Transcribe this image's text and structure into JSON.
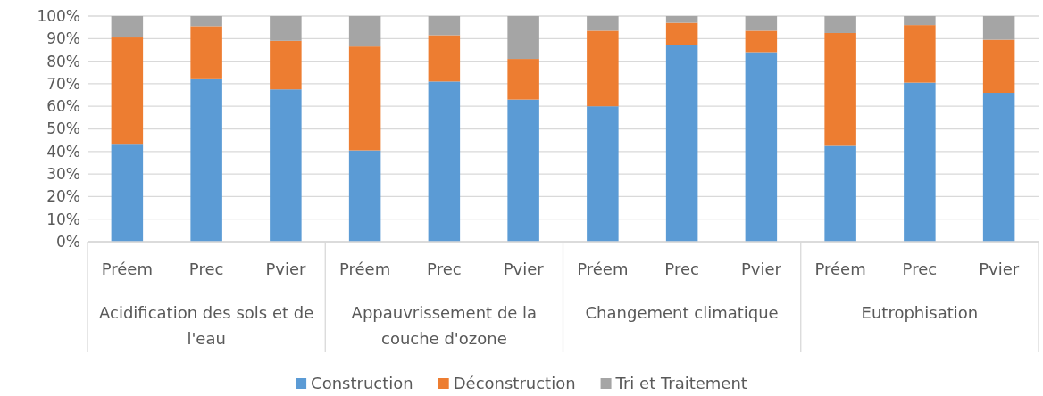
{
  "chart_data": {
    "type": "bar",
    "stacked": true,
    "categories": [
      "Préem",
      "Prec",
      "Pvier",
      "Préem",
      "Prec",
      "Pvier",
      "Préem",
      "Prec",
      "Pvier",
      "Préem",
      "Prec",
      "Pvier"
    ],
    "annotations": [
      "Acidification des sols et de l'eau",
      "Appauvrissement de la couche d'ozone",
      "Changement climatique",
      "Eutrophisation"
    ],
    "series": [
      {
        "name": "Construction",
        "color": "#5b9bd5",
        "values": [
          43,
          72,
          67.5,
          40.5,
          71,
          63,
          60,
          87,
          84,
          42.5,
          70.5,
          66
        ]
      },
      {
        "name": "Déconstruction",
        "color": "#ed7d31",
        "values": [
          47.5,
          23.5,
          21.5,
          46,
          20.5,
          18,
          33.5,
          10,
          9.5,
          50,
          25.5,
          23.5
        ]
      },
      {
        "name": "Tri et Traitement",
        "color": "#a5a5a5",
        "values": [
          9.5,
          4.5,
          11,
          13.5,
          8.5,
          19,
          6.5,
          3,
          6.5,
          7.5,
          4,
          10.5
        ]
      }
    ],
    "ylim": [
      0,
      100
    ],
    "yticks": [
      {
        "value": 0,
        "label": "0%"
      },
      {
        "value": 10,
        "label": "10%"
      },
      {
        "value": 20,
        "label": "20%"
      },
      {
        "value": 30,
        "label": "30%"
      },
      {
        "value": 40,
        "label": "40%"
      },
      {
        "value": 50,
        "label": "50%"
      },
      {
        "value": 60,
        "label": "60%"
      },
      {
        "value": 70,
        "label": "70%"
      },
      {
        "value": 80,
        "label": "80%"
      },
      {
        "value": 90,
        "label": "90%"
      },
      {
        "value": 100,
        "label": "100%"
      }
    ],
    "grid": "y",
    "legend": "bottom"
  }
}
